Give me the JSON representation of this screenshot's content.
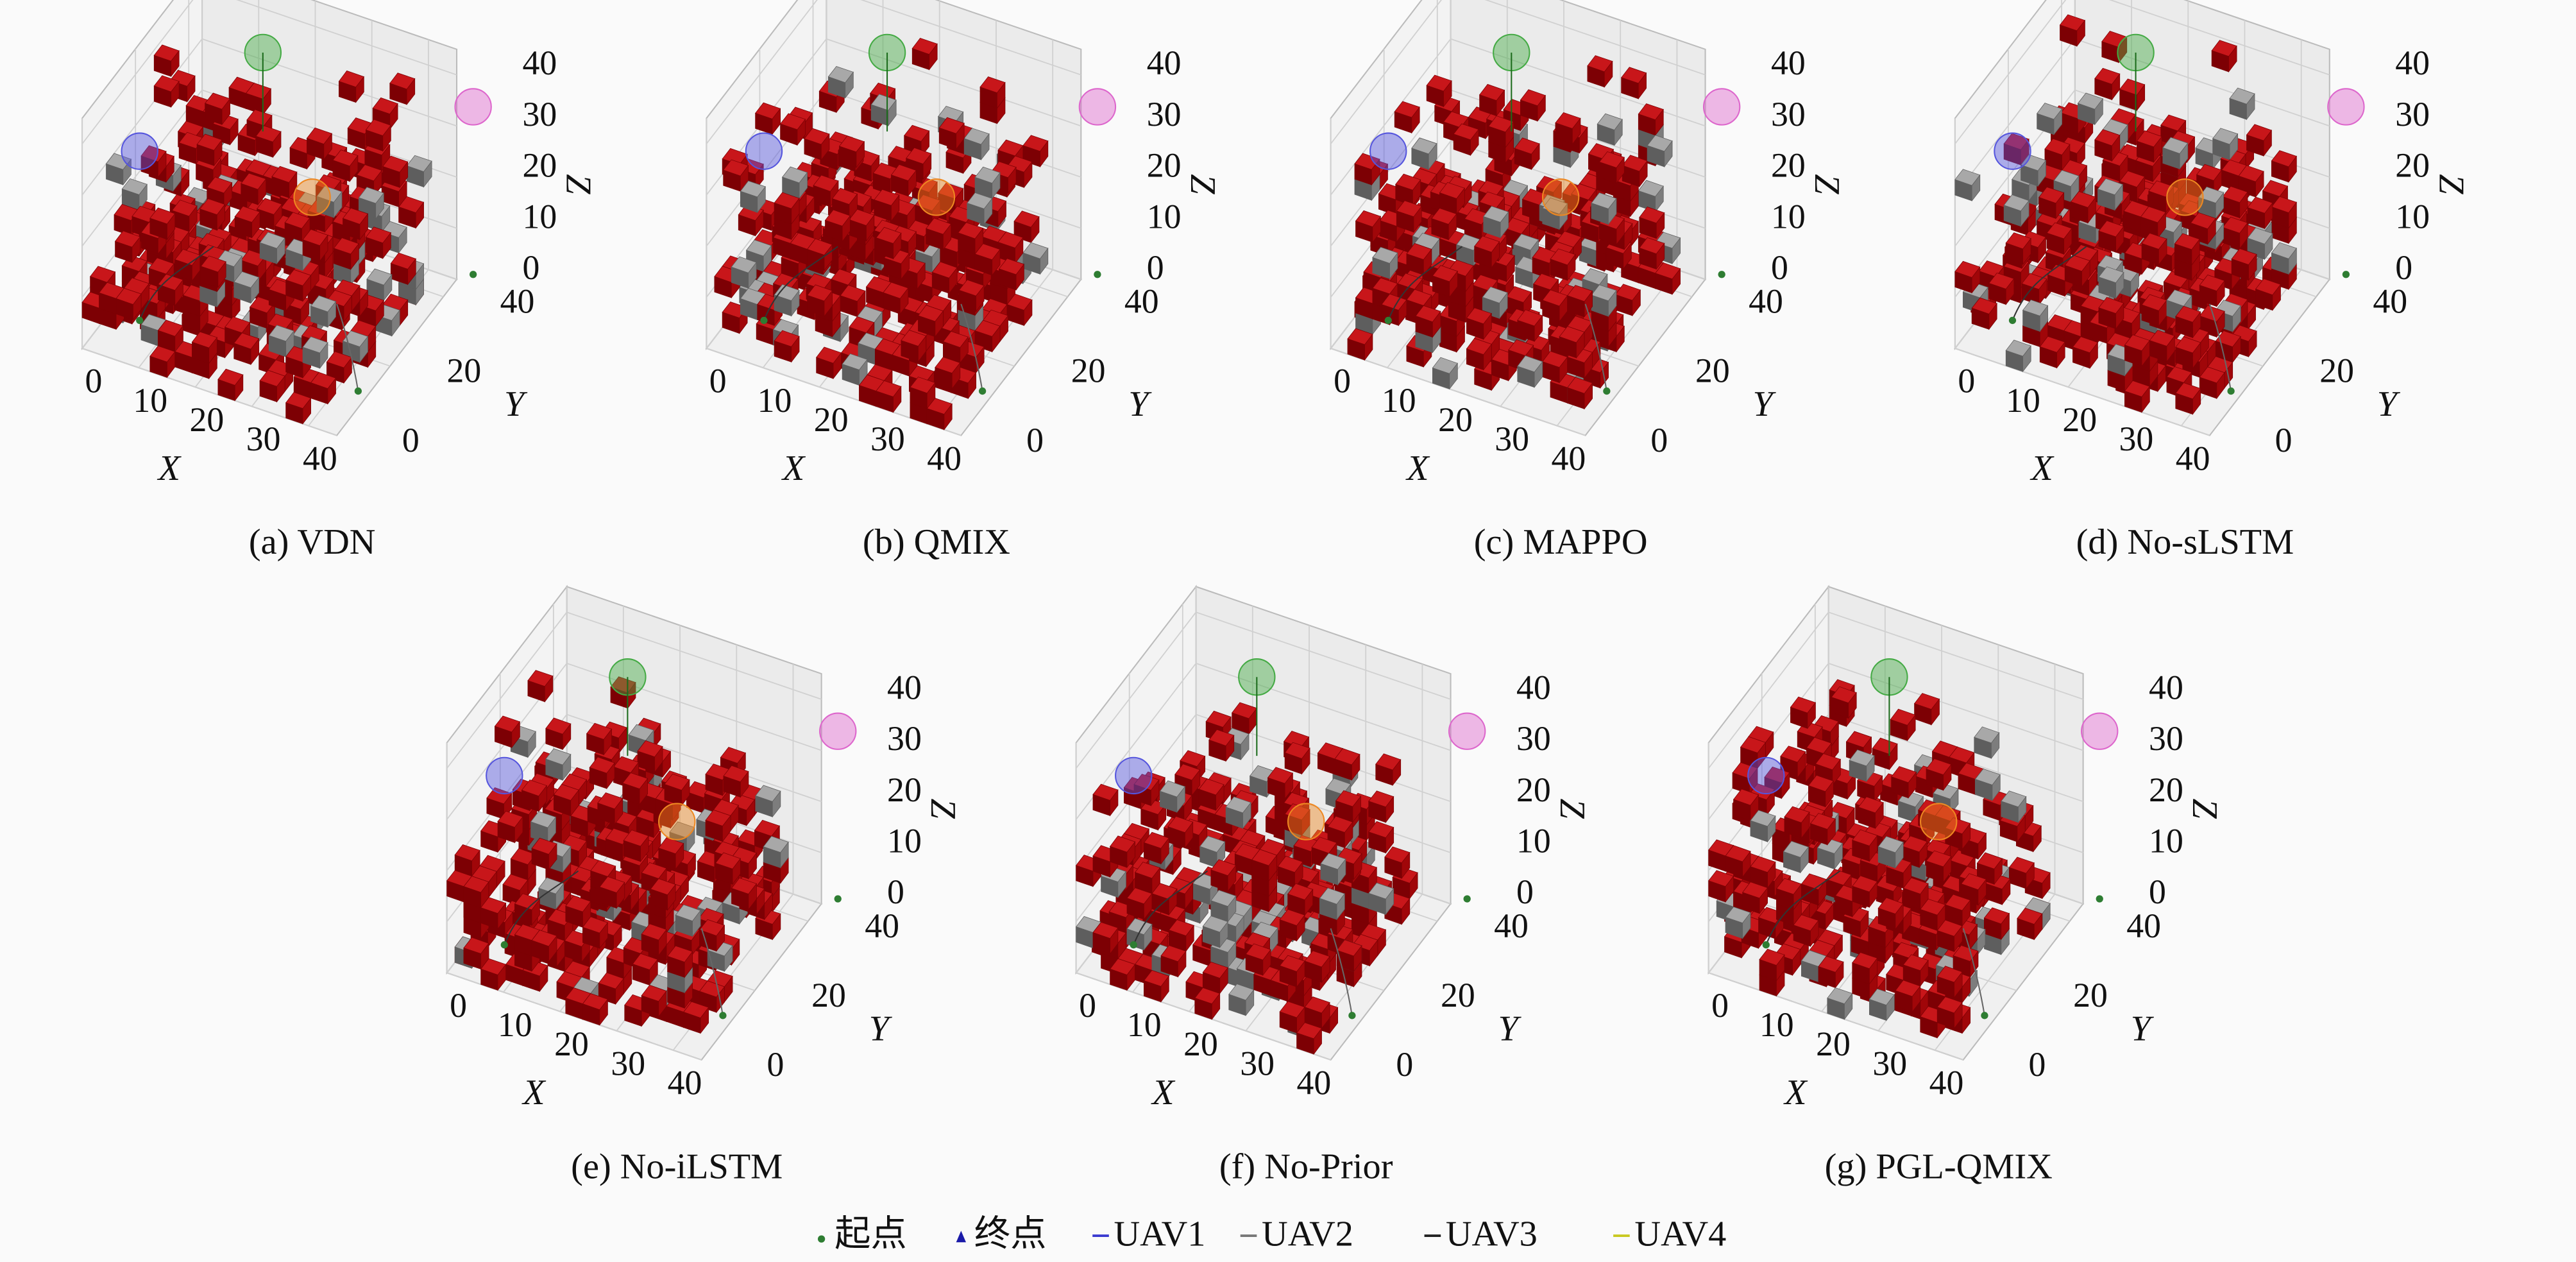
{
  "chart_data": [
    {
      "type": "voxel3d",
      "caption": "(a) VDN",
      "xlabel": "X",
      "ylabel": "Y",
      "zlabel": "Z",
      "xlim": [
        0,
        45
      ],
      "ylim": [
        0,
        45
      ],
      "zlim": [
        0,
        45
      ],
      "xticks": [
        0,
        10,
        20,
        30,
        40
      ],
      "yticks": [
        0,
        20,
        40
      ],
      "zticks": [
        0,
        10,
        20,
        30,
        40
      ]
    },
    {
      "type": "voxel3d",
      "caption": "(b) QMIX",
      "xlabel": "X",
      "ylabel": "Y",
      "zlabel": "Z",
      "xlim": [
        0,
        45
      ],
      "ylim": [
        0,
        45
      ],
      "zlim": [
        0,
        45
      ],
      "xticks": [
        0,
        10,
        20,
        30,
        40
      ],
      "yticks": [
        0,
        20,
        40
      ],
      "zticks": [
        0,
        10,
        20,
        30,
        40
      ]
    },
    {
      "type": "voxel3d",
      "caption": "(c) MAPPO",
      "xlabel": "X",
      "ylabel": "Y",
      "zlabel": "Z",
      "xlim": [
        0,
        45
      ],
      "ylim": [
        0,
        45
      ],
      "zlim": [
        0,
        45
      ],
      "xticks": [
        0,
        10,
        20,
        30,
        40
      ],
      "yticks": [
        0,
        20,
        40
      ],
      "zticks": [
        0,
        10,
        20,
        30,
        40
      ]
    },
    {
      "type": "voxel3d",
      "caption": "(d) No-sLSTM",
      "xlabel": "X",
      "ylabel": "Y",
      "zlabel": "Z",
      "xlim": [
        0,
        45
      ],
      "ylim": [
        0,
        45
      ],
      "zlim": [
        0,
        45
      ],
      "xticks": [
        0,
        10,
        20,
        30,
        40
      ],
      "yticks": [
        0,
        20,
        40
      ],
      "zticks": [
        0,
        10,
        20,
        30,
        40
      ]
    },
    {
      "type": "voxel3d",
      "caption": "(e) No-iLSTM",
      "xlabel": "X",
      "ylabel": "Y",
      "zlabel": "Z",
      "xlim": [
        0,
        45
      ],
      "ylim": [
        0,
        45
      ],
      "zlim": [
        0,
        45
      ],
      "xticks": [
        0,
        10,
        20,
        30,
        40
      ],
      "yticks": [
        0,
        20,
        40
      ],
      "zticks": [
        0,
        10,
        20,
        30,
        40
      ]
    },
    {
      "type": "voxel3d",
      "caption": "(f) No-Prior",
      "xlabel": "X",
      "ylabel": "Y",
      "zlabel": "Z",
      "xlim": [
        0,
        45
      ],
      "ylim": [
        0,
        45
      ],
      "zlim": [
        0,
        45
      ],
      "xticks": [
        0,
        10,
        20,
        30,
        40
      ],
      "yticks": [
        0,
        20,
        40
      ],
      "zticks": [
        0,
        10,
        20,
        30,
        40
      ]
    },
    {
      "type": "voxel3d",
      "caption": "(g) PGL-QMIX",
      "xlabel": "X",
      "ylabel": "Y",
      "zlabel": "Z",
      "xlim": [
        0,
        45
      ],
      "ylim": [
        0,
        45
      ],
      "zlim": [
        0,
        45
      ],
      "xticks": [
        0,
        10,
        20,
        30,
        40
      ],
      "yticks": [
        0,
        20,
        40
      ],
      "zticks": [
        0,
        10,
        20,
        30,
        40
      ]
    }
  ],
  "legend": [
    {
      "name": "起点",
      "color": "#2e7d32",
      "marker": "dot"
    },
    {
      "name": "终点",
      "color": "#1a1aa8",
      "marker": "triangle"
    },
    {
      "name": "UAV1",
      "color": "#3a3ad0",
      "marker": "line"
    },
    {
      "name": "UAV2",
      "color": "#777777",
      "marker": "line"
    },
    {
      "name": "UAV3",
      "color": "#222222",
      "marker": "line"
    },
    {
      "name": "UAV4",
      "color": "#c8c820",
      "marker": "line"
    }
  ]
}
